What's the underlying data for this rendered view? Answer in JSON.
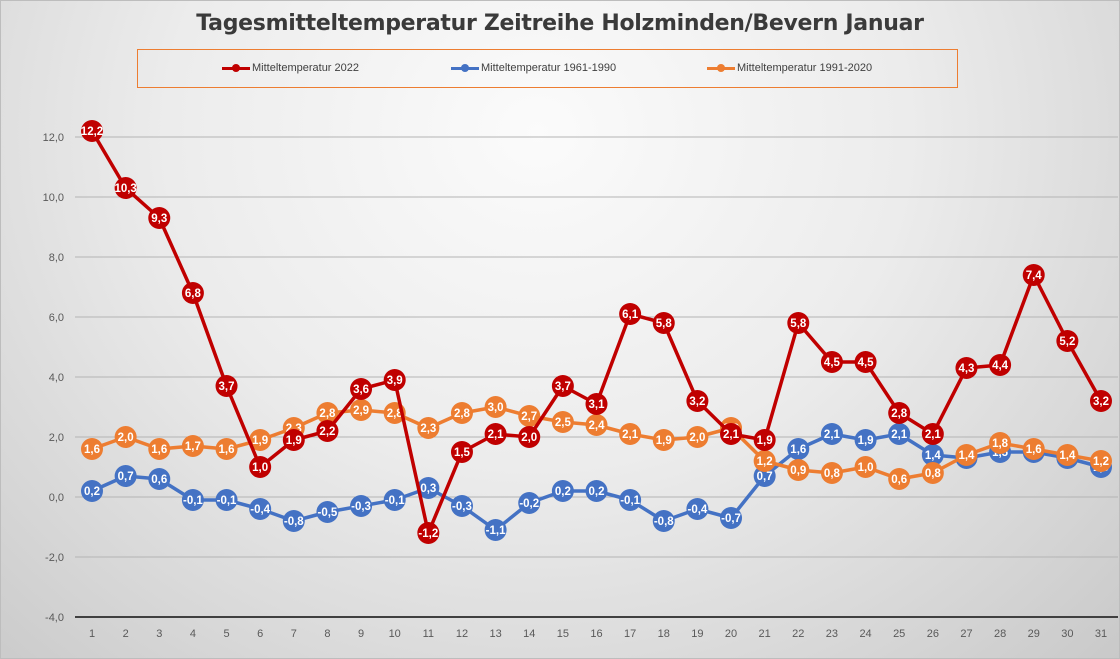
{
  "chart_data": {
    "type": "line",
    "title": "Tagesmitteltemperatur Zeitreihe Holzminden/Bevern Januar",
    "xlabel": "",
    "ylabel": "",
    "ylim": [
      -4,
      12
    ],
    "yticks": [
      -4,
      -2,
      0,
      2,
      4,
      6,
      8,
      10,
      12
    ],
    "ytick_labels": [
      "-4,0",
      "-2,0",
      "0,0",
      "2,0",
      "4,0",
      "6,0",
      "8,0",
      "10,0",
      "12,0"
    ],
    "grid": true,
    "legend_position": "top",
    "x": [
      1,
      2,
      3,
      4,
      5,
      6,
      7,
      8,
      9,
      10,
      11,
      12,
      13,
      14,
      15,
      16,
      17,
      18,
      19,
      20,
      21,
      22,
      23,
      24,
      25,
      26,
      27,
      28,
      29,
      30,
      31
    ],
    "x_labels": [
      "1",
      "2",
      "3",
      "4",
      "5",
      "6",
      "7",
      "8",
      "9",
      "10",
      "11",
      "12",
      "13",
      "14",
      "15",
      "16",
      "17",
      "18",
      "19",
      "20",
      "21",
      "22",
      "23",
      "24",
      "25",
      "26",
      "27",
      "28",
      "29",
      "30",
      "31"
    ],
    "series": [
      {
        "name": "Mitteltemperatur 1961-1990",
        "color": "#4472c4",
        "values": [
          0.2,
          0.7,
          0.6,
          -0.1,
          -0.1,
          -0.4,
          -0.8,
          -0.5,
          -0.3,
          -0.1,
          0.3,
          -0.3,
          -1.1,
          -0.2,
          0.2,
          0.2,
          -0.1,
          -0.8,
          -0.4,
          -0.7,
          0.7,
          1.6,
          2.1,
          1.9,
          2.1,
          1.4,
          1.3,
          1.5,
          1.5,
          1.3,
          1.0
        ],
        "labels": [
          "0,2",
          "0,7",
          "0,6",
          "-0,1",
          "-0,1",
          "-0,4",
          "-0,8",
          "-0,5",
          "-0,3",
          "-0,1",
          "0,3",
          "-0,3",
          "-1,1",
          "-0,2",
          "0,2",
          "0,2",
          "-0,1",
          "-0,8",
          "-0,4",
          "-0,7",
          "0,7",
          "1,6",
          "2,1",
          "1,9",
          "2,1",
          "1,4",
          "1,3",
          "1,5",
          "1,5",
          "1,3",
          "1,0"
        ]
      },
      {
        "name": "Mitteltemperatur 1991-2020",
        "color": "#ed7d31",
        "values": [
          1.6,
          2.0,
          1.6,
          1.7,
          1.6,
          1.9,
          2.3,
          2.8,
          2.9,
          2.8,
          2.3,
          2.8,
          3.0,
          2.7,
          2.5,
          2.4,
          2.1,
          1.9,
          2.0,
          2.3,
          1.2,
          0.9,
          0.8,
          1.0,
          0.6,
          0.8,
          1.4,
          1.8,
          1.6,
          1.4,
          1.2
        ],
        "labels": [
          "1,6",
          "2,0",
          "1,6",
          "1,7",
          "1,6",
          "1,9",
          "2,3",
          "2,8",
          "2,9",
          "2,8",
          "2,3",
          "2,8",
          "3,0",
          "2,7",
          "2,5",
          "2,4",
          "2,1",
          "1,9",
          "2,0",
          "2,3",
          "1,2",
          "0,9",
          "0,8",
          "1,0",
          "0,6",
          "0,8",
          "1,4",
          "1,8",
          "1,6",
          "1,4",
          "1,2"
        ]
      },
      {
        "name": "Mitteltemperatur 2022",
        "color": "#c00000",
        "values": [
          12.2,
          10.3,
          9.3,
          6.8,
          3.7,
          1.0,
          1.9,
          2.2,
          3.6,
          3.9,
          -1.2,
          1.5,
          2.1,
          2.0,
          3.7,
          3.1,
          6.1,
          5.8,
          3.2,
          2.1,
          1.9,
          5.8,
          4.5,
          4.5,
          2.8,
          2.1,
          4.3,
          4.4,
          7.4,
          5.2,
          3.2
        ],
        "labels": [
          "12,2",
          "10,3",
          "9,3",
          "6,8",
          "3,7",
          "1,0",
          "1,9",
          "2,2",
          "3,6",
          "3,9",
          "-1,2",
          "1,5",
          "2,1",
          "2,0",
          "3,7",
          "3,1",
          "6,1",
          "5,8",
          "3,2",
          "2,1",
          "1,9",
          "5,8",
          "4,5",
          "4,5",
          "2,8",
          "2,1",
          "4,3",
          "4,4",
          "7,4",
          "5,2",
          "3,2"
        ]
      }
    ],
    "legend_order": [
      2,
      0,
      1
    ]
  }
}
